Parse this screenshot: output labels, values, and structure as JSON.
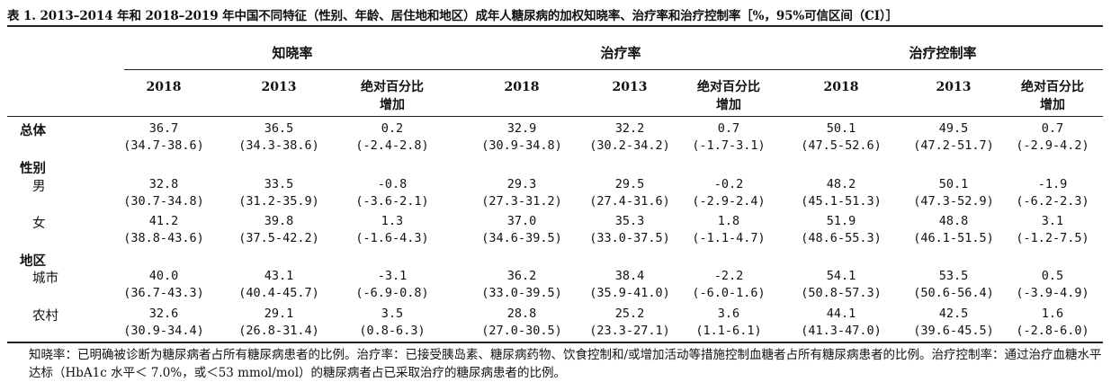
{
  "title": "表 1. 2013–2014 年和 2018–2019 年中国不同特征（性别、年龄、居住地和地区）成年人糖尿病的加权知晓率、治疗率和治疗控制率［%，95%可信区间（CI）］",
  "groups": [
    "知晓率",
    "治疗率",
    "治疗控制率"
  ],
  "subheaders": [
    "2018",
    "2013",
    "绝对百分比增加",
    "2018",
    "2013",
    "绝对百分比增加",
    "2018",
    "2013",
    "绝对百分比增加"
  ],
  "rows": [
    {
      "label": "总体",
      "values": [
        "36.7",
        "36.5",
        "0.2",
        "32.9",
        "32.2",
        "0.7",
        "50.1",
        "49.5",
        "0.7"
      ],
      "ci": [
        "(34.7-38.6)",
        "(34.3-38.6)",
        "(-2.4-2.8)",
        "(30.9-34.8)",
        "(30.2-34.2)",
        "(-1.7-3.1)",
        "(47.5-52.6)",
        "(47.2-51.7)",
        "(-2.9-4.2)"
      ]
    },
    {
      "label": "性别"
    },
    {
      "label": "男",
      "values": [
        "32.8",
        "33.5",
        "-0.8",
        "29.3",
        "29.5",
        "-0.2",
        "48.2",
        "50.1",
        "-1.9"
      ],
      "ci": [
        "(30.7-34.8)",
        "(31.2-35.9)",
        "(-3.6-2.1)",
        "(27.3-31.2)",
        "(27.4-31.6)",
        "(-2.9-2.4)",
        "(45.1-51.3)",
        "(47.3-52.9)",
        "(-6.2-2.3)"
      ]
    },
    {
      "label": "女",
      "values": [
        "41.2",
        "39.8",
        "1.3",
        "37.0",
        "35.3",
        "1.8",
        "51.9",
        "48.8",
        "3.1"
      ],
      "ci": [
        "(38.8-43.6)",
        "(37.5-42.2)",
        "(-1.6-4.3)",
        "(34.6-39.5)",
        "(33.0-37.5)",
        "(-1.1-4.7)",
        "(48.6-55.3)",
        "(46.1-51.5)",
        "(-1.2-7.5)"
      ]
    },
    {
      "label": "地区"
    },
    {
      "label": "城市",
      "values": [
        "40.0",
        "43.1",
        "-3.1",
        "36.2",
        "38.4",
        "-2.2",
        "54.1",
        "53.5",
        "0.5"
      ],
      "ci": [
        "(36.7-43.3)",
        "(40.4-45.7)",
        "(-6.9-0.8)",
        "(33.0-39.5)",
        "(35.9-41.0)",
        "(-6.0-1.6)",
        "(50.8-57.3)",
        "(50.6-56.4)",
        "(-3.9-4.9)"
      ]
    },
    {
      "label": "农村",
      "values": [
        "32.6",
        "29.1",
        "3.5",
        "28.8",
        "25.2",
        "3.6",
        "44.1",
        "42.5",
        "1.6"
      ],
      "ci": [
        "(30.9-34.4)",
        "(26.8-31.4)",
        "(0.8-6.3)",
        "(27.0-30.5)",
        "(23.3-27.1)",
        "(1.1-6.1)",
        "(41.3-47.0)",
        "(39.6-45.5)",
        "(-2.8-6.0)"
      ]
    }
  ],
  "footnote": "知晓率：已明确被诊断为糖尿病者占所有糖尿病患者的比例。治疗率：已接受胰岛素、糖尿病药物、饮食控制和/或增加活动等措施控制血糖者占所有糖尿病患者的比例。治疗控制率：通过治疗血糖水平达标（HbA1c 水平＜ 7.0%，或＜53 mmol/mol）的糖尿病者占已采取治疗的糖尿病患者的比例。"
}
